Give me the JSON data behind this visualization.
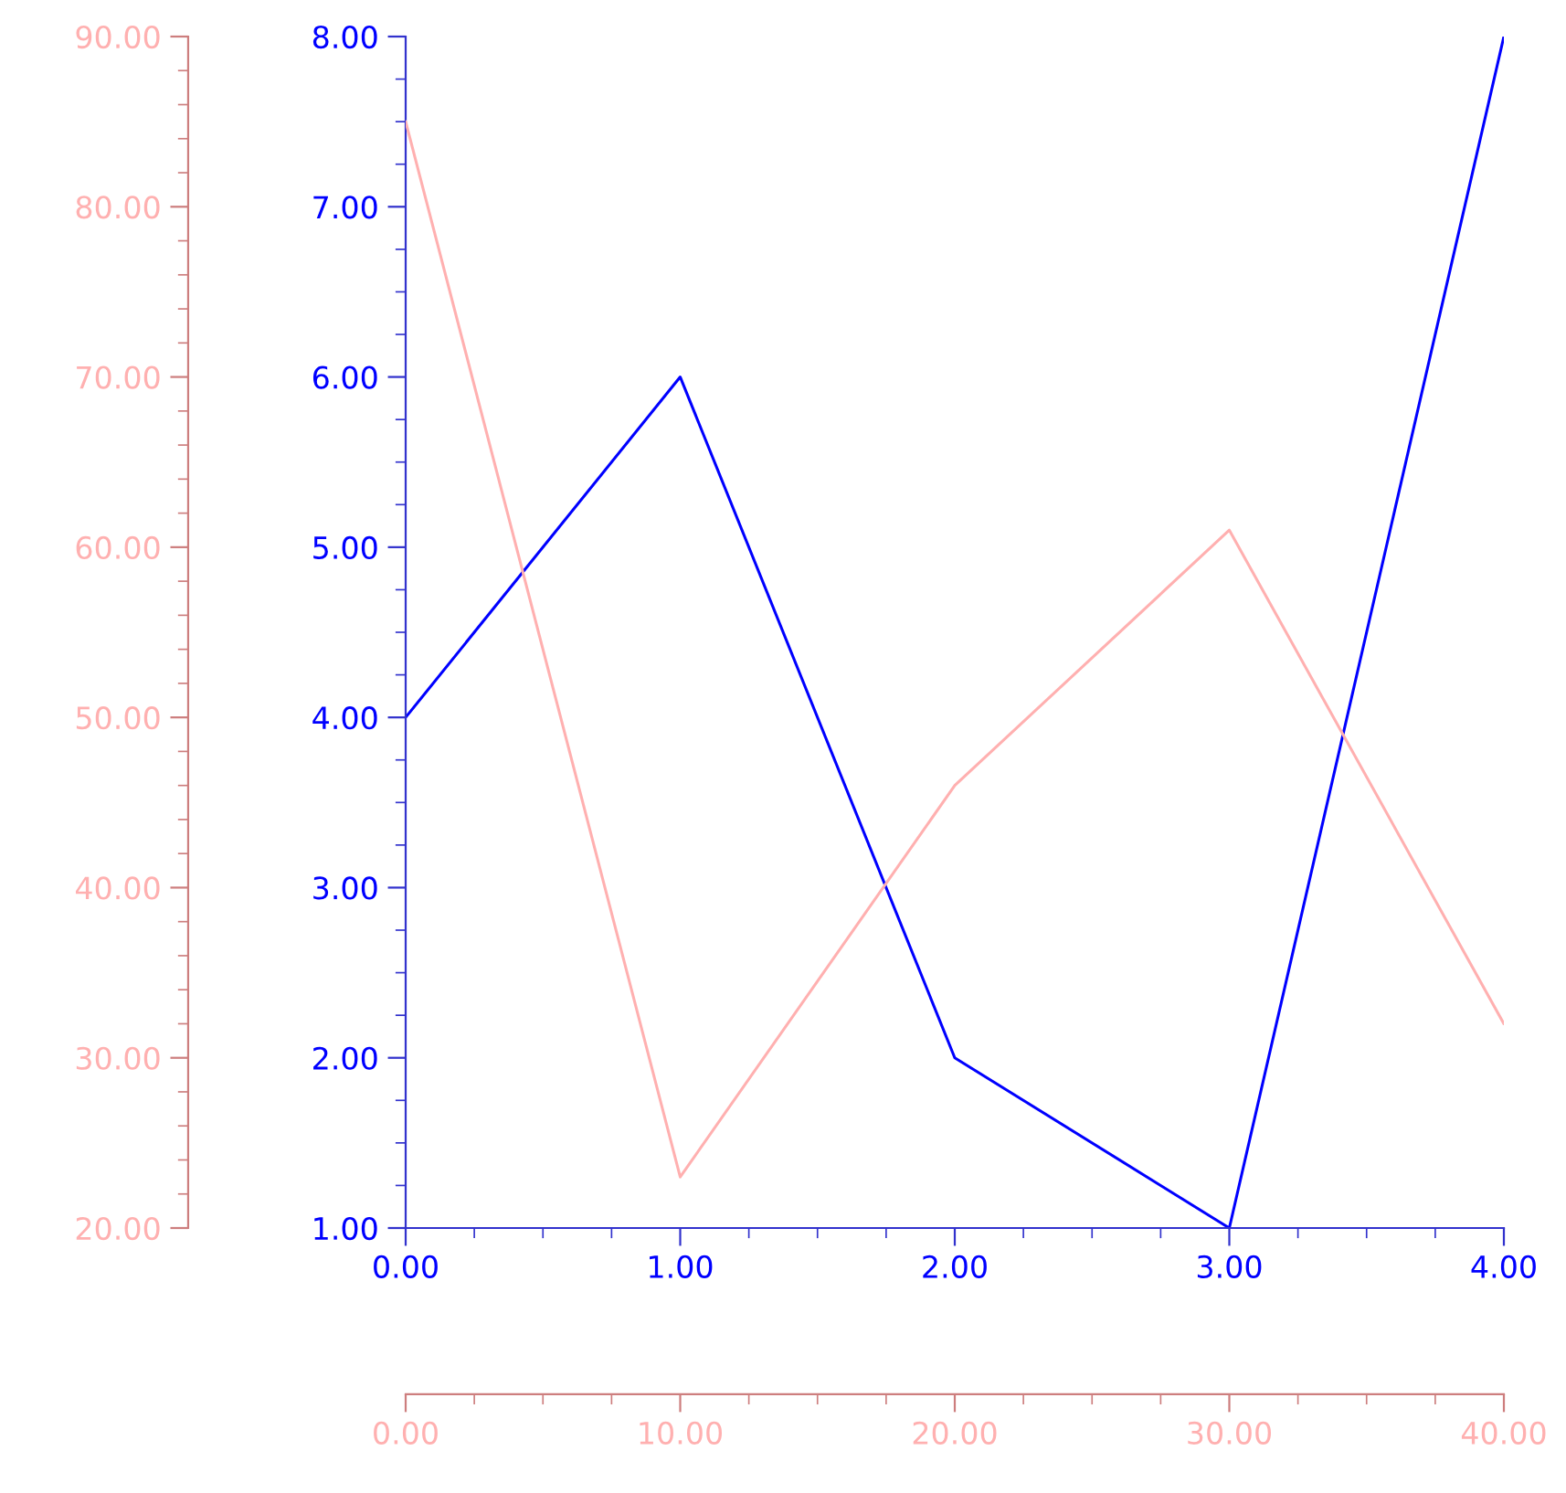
{
  "chart_data": {
    "type": "line",
    "x": [
      0,
      1,
      2,
      3,
      4
    ],
    "series": [
      {
        "color": "#0000ff",
        "values": [
          4,
          6,
          2,
          1,
          8
        ]
      },
      {
        "color": "#ffb0b0",
        "axis": "y2",
        "values": [
          85,
          23,
          46,
          61,
          32
        ]
      }
    ],
    "xlim": [
      0,
      4
    ],
    "xticks": [
      {
        "value": 0,
        "label": "0.00"
      },
      {
        "value": 1,
        "label": "1.00"
      },
      {
        "value": 2,
        "label": "2.00"
      },
      {
        "value": 3,
        "label": "3.00"
      },
      {
        "value": 4,
        "label": "4.00"
      }
    ],
    "ylim": [
      1,
      8
    ],
    "yticks": [
      {
        "value": 1,
        "label": "1.00"
      },
      {
        "value": 2,
        "label": "2.00"
      },
      {
        "value": 3,
        "label": "3.00"
      },
      {
        "value": 4,
        "label": "4.00"
      },
      {
        "value": 5,
        "label": "5.00"
      },
      {
        "value": 6,
        "label": "6.00"
      },
      {
        "value": 7,
        "label": "7.00"
      },
      {
        "value": 8,
        "label": "8.00"
      }
    ],
    "x2lim": [
      0,
      40
    ],
    "x2ticks": [
      {
        "value": 0,
        "label": "0.00"
      },
      {
        "value": 10,
        "label": "10.00"
      },
      {
        "value": 20,
        "label": "20.00"
      },
      {
        "value": 30,
        "label": "30.00"
      },
      {
        "value": 40,
        "label": "40.00"
      }
    ],
    "y2lim": [
      20,
      90
    ],
    "y2ticks": [
      {
        "value": 20,
        "label": "20.00"
      },
      {
        "value": 30,
        "label": "30.00"
      },
      {
        "value": 40,
        "label": "40.00"
      },
      {
        "value": 50,
        "label": "50.00"
      },
      {
        "value": 60,
        "label": "60.00"
      },
      {
        "value": 70,
        "label": "70.00"
      },
      {
        "value": 80,
        "label": "80.00"
      },
      {
        "value": 90,
        "label": "90.00"
      }
    ],
    "grid": false,
    "legend": false
  }
}
